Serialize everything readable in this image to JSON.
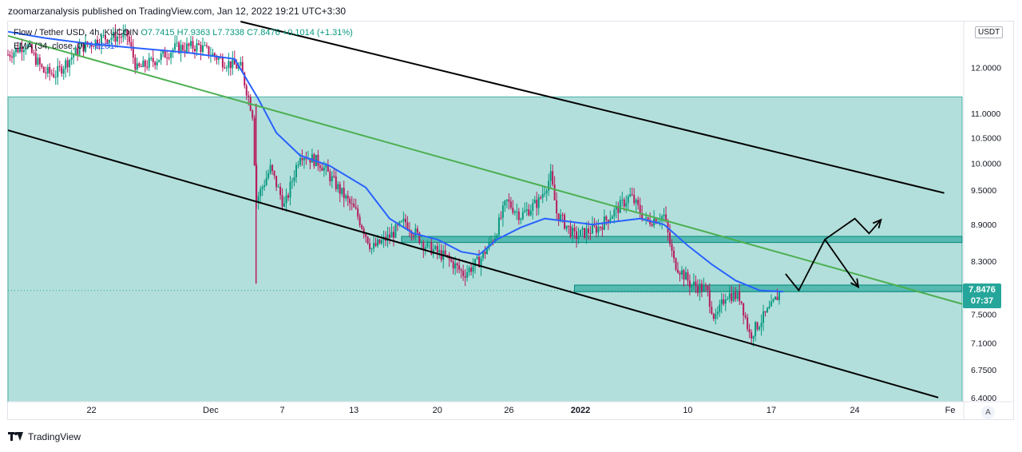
{
  "header": {
    "published": "zoomarzanalysis published on TradingView.com, Jan 12, 2022 19:21 UTC+3:30"
  },
  "legend": {
    "symbol": "Flow / Tether USD, 4h, KUCOIN",
    "open": "O7.7415",
    "high": "H7.9363",
    "low": "L7.7338",
    "close": "C7.8476",
    "change": "+0.1014 (+1.31%)",
    "ema_label": "EMA (34, close, 0)",
    "ema_value": "7.8291"
  },
  "price_axis": {
    "currency": "USDT",
    "last_price": "7.8476",
    "countdown": "07:37",
    "auto_label": "A"
  },
  "footer": {
    "brand": "TradingView"
  },
  "chart_data": {
    "type": "candlestick",
    "title": "Flow / Tether USD, 4h, KUCOIN",
    "xlabel": "",
    "ylabel": "USDT",
    "ylim": [
      6.35,
      13.1
    ],
    "y_ticks": [
      12.0,
      11.0,
      10.5,
      10.0,
      9.5,
      8.9,
      8.3,
      7.5,
      7.1,
      6.75,
      6.4
    ],
    "y_tick_labels": [
      "12.0000",
      "11.0000",
      "10.5000",
      "10.0000",
      "9.5000",
      "8.9000",
      "8.3000",
      "7.5000",
      "7.1000",
      "6.7500",
      "6.4000"
    ],
    "x_tick_labels": [
      "22",
      "Dec",
      "7",
      "13",
      "20",
      "26",
      "2022",
      "10",
      "17",
      "24",
      "Fe"
    ],
    "x_tick_days": [
      -10,
      0,
      6,
      12,
      19,
      25,
      31,
      40,
      47,
      54,
      62
    ],
    "x_range_days": [
      -17,
      63
    ],
    "price_path": [
      {
        "d": -17,
        "p": 12.3
      },
      {
        "d": -15.5,
        "p": 12.55
      },
      {
        "d": -14,
        "p": 11.9
      },
      {
        "d": -13,
        "p": 11.85
      },
      {
        "d": -11,
        "p": 12.45
      },
      {
        "d": -9,
        "p": 12.7
      },
      {
        "d": -7,
        "p": 12.75
      },
      {
        "d": -6.2,
        "p": 11.95
      },
      {
        "d": -4.5,
        "p": 12.2
      },
      {
        "d": -3,
        "p": 12.45
      },
      {
        "d": -1,
        "p": 12.5
      },
      {
        "d": 1,
        "p": 12.15
      },
      {
        "d": 2.5,
        "p": 12.0
      },
      {
        "d": 3.5,
        "p": 11.0
      },
      {
        "d": 3.8,
        "p": 9.3
      },
      {
        "d": 5,
        "p": 9.9
      },
      {
        "d": 6.2,
        "p": 9.2
      },
      {
        "d": 7.5,
        "p": 10.2
      },
      {
        "d": 9.2,
        "p": 10.0
      },
      {
        "d": 10.8,
        "p": 9.5
      },
      {
        "d": 12.2,
        "p": 9.1
      },
      {
        "d": 13.5,
        "p": 8.5
      },
      {
        "d": 15,
        "p": 8.7
      },
      {
        "d": 16.3,
        "p": 8.95
      },
      {
        "d": 18,
        "p": 8.55
      },
      {
        "d": 19.8,
        "p": 8.35
      },
      {
        "d": 21.2,
        "p": 8.1
      },
      {
        "d": 22.5,
        "p": 8.3
      },
      {
        "d": 23.8,
        "p": 8.7
      },
      {
        "d": 24.8,
        "p": 9.3
      },
      {
        "d": 26,
        "p": 9.05
      },
      {
        "d": 27.5,
        "p": 9.3
      },
      {
        "d": 28.5,
        "p": 9.75
      },
      {
        "d": 29,
        "p": 9.1
      },
      {
        "d": 30.5,
        "p": 8.7
      },
      {
        "d": 32.5,
        "p": 8.85
      },
      {
        "d": 34,
        "p": 9.15
      },
      {
        "d": 35.2,
        "p": 9.4
      },
      {
        "d": 36.5,
        "p": 8.95
      },
      {
        "d": 38,
        "p": 9.05
      },
      {
        "d": 38.8,
        "p": 8.3
      },
      {
        "d": 40.2,
        "p": 7.95
      },
      {
        "d": 41.6,
        "p": 7.85
      },
      {
        "d": 42.3,
        "p": 7.4
      },
      {
        "d": 43.2,
        "p": 7.8
      },
      {
        "d": 44.4,
        "p": 7.75
      },
      {
        "d": 45.2,
        "p": 7.2
      },
      {
        "d": 46.3,
        "p": 7.45
      },
      {
        "d": 47,
        "p": 7.6
      },
      {
        "d": 47.8,
        "p": 7.85
      }
    ],
    "series": [
      {
        "name": "EMA (34, close, 0)",
        "color": "#2962ff",
        "points": [
          {
            "d": -17,
            "p": 12.85
          },
          {
            "d": -14,
            "p": 12.7
          },
          {
            "d": -10,
            "p": 12.55
          },
          {
            "d": -6,
            "p": 12.45
          },
          {
            "d": -2,
            "p": 12.35
          },
          {
            "d": 2,
            "p": 12.2
          },
          {
            "d": 4,
            "p": 11.3
          },
          {
            "d": 5.5,
            "p": 10.6
          },
          {
            "d": 7.5,
            "p": 10.15
          },
          {
            "d": 10,
            "p": 9.95
          },
          {
            "d": 13,
            "p": 9.55
          },
          {
            "d": 15,
            "p": 9.0
          },
          {
            "d": 17,
            "p": 8.75
          },
          {
            "d": 19,
            "p": 8.65
          },
          {
            "d": 21,
            "p": 8.45
          },
          {
            "d": 22.5,
            "p": 8.4
          },
          {
            "d": 24,
            "p": 8.65
          },
          {
            "d": 26,
            "p": 8.85
          },
          {
            "d": 28,
            "p": 9.0
          },
          {
            "d": 30,
            "p": 8.95
          },
          {
            "d": 32,
            "p": 8.9
          },
          {
            "d": 34,
            "p": 8.95
          },
          {
            "d": 36,
            "p": 9.0
          },
          {
            "d": 38,
            "p": 8.9
          },
          {
            "d": 40,
            "p": 8.55
          },
          {
            "d": 42,
            "p": 8.25
          },
          {
            "d": 44,
            "p": 8.0
          },
          {
            "d": 46,
            "p": 7.85
          },
          {
            "d": 48,
            "p": 7.83
          }
        ]
      },
      {
        "name": "Channel upper",
        "color": "#000000",
        "points": [
          {
            "d": 2.5,
            "p": 13.1
          },
          {
            "d": 61.5,
            "p": 9.45
          }
        ]
      },
      {
        "name": "Channel lower",
        "color": "#000000",
        "points": [
          {
            "d": -17,
            "p": 10.65
          },
          {
            "d": 61,
            "p": 6.4
          }
        ]
      },
      {
        "name": "Trend line",
        "color": "#4caf50",
        "points": [
          {
            "d": -17,
            "p": 12.75
          },
          {
            "d": 63,
            "p": 7.65
          }
        ]
      }
    ],
    "zones": [
      {
        "name": "Large support zone",
        "d_from": -17,
        "d_to": 63,
        "p_from": 6.35,
        "p_to": 11.35
      },
      {
        "name": "Resistance box",
        "d_from": 16,
        "d_to": 63,
        "p_from": 8.6,
        "p_to": 8.7
      },
      {
        "name": "Support box",
        "d_from": 30.5,
        "d_to": 63,
        "p_from": 7.83,
        "p_to": 7.93
      }
    ],
    "last_price_line": 7.8476,
    "projection": {
      "path": [
        {
          "d": 48.2,
          "p": 8.1
        },
        {
          "d": 49.3,
          "p": 7.85
        },
        {
          "d": 51.5,
          "p": 8.65
        },
        {
          "d": 54,
          "p": 9.0
        },
        {
          "d": 55.2,
          "p": 8.75
        },
        {
          "d": 56.2,
          "p": 8.98
        }
      ],
      "alt_path": [
        {
          "d": 51.5,
          "p": 8.65
        },
        {
          "d": 54.3,
          "p": 7.9
        }
      ]
    }
  }
}
